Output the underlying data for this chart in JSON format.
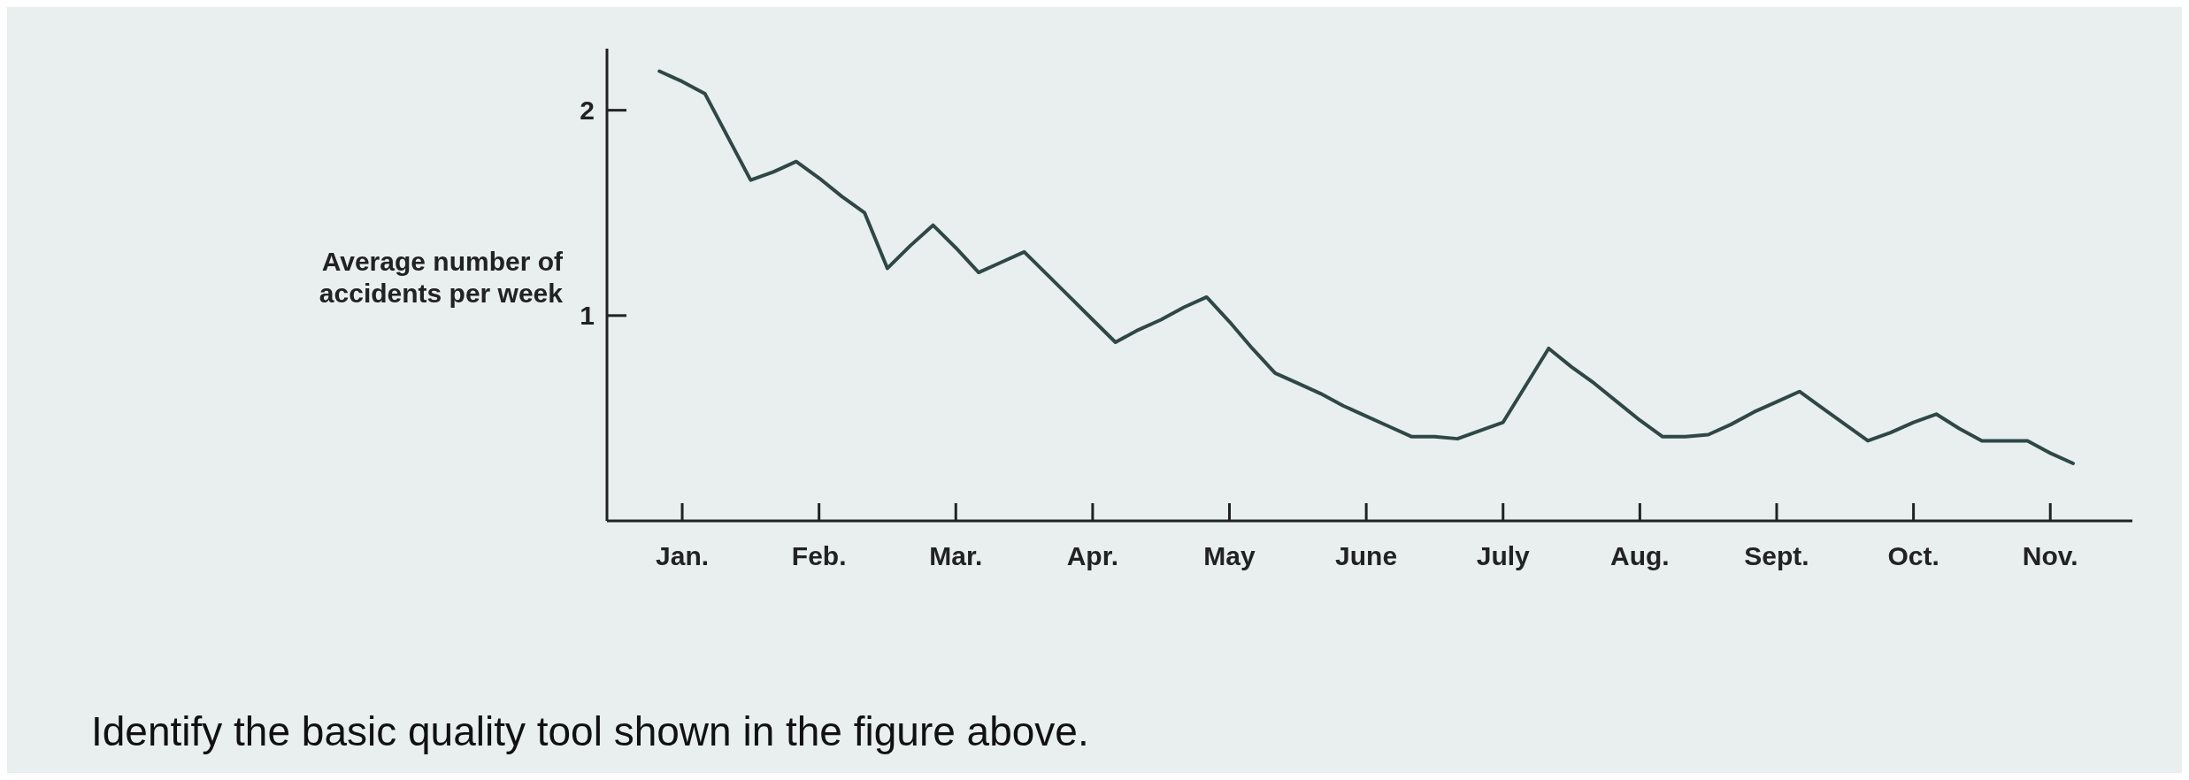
{
  "chart_data": {
    "type": "line",
    "ylabel": "Average number of accidents per week",
    "categories": [
      null,
      "Jan.",
      null,
      null,
      null,
      null,
      null,
      "Feb.",
      null,
      null,
      null,
      null,
      null,
      "Mar.",
      null,
      null,
      null,
      null,
      null,
      "Apr.",
      null,
      null,
      null,
      null,
      null,
      "May",
      null,
      null,
      null,
      null,
      null,
      "June",
      null,
      null,
      null,
      null,
      null,
      "July",
      null,
      null,
      null,
      null,
      null,
      "Aug.",
      null,
      null,
      null,
      null,
      null,
      "Sept.",
      null,
      null,
      null,
      null,
      null,
      "Oct.",
      null,
      null,
      null,
      null,
      null,
      "Nov.",
      null
    ],
    "series": [
      {
        "color": "#2f4747",
        "values": [
          2.19,
          2.14,
          2.08,
          1.87,
          1.66,
          1.7,
          1.75,
          1.67,
          1.58,
          1.5,
          1.23,
          1.34,
          1.44,
          1.33,
          1.21,
          1.26,
          1.31,
          1.2,
          1.09,
          0.98,
          0.87,
          0.93,
          0.98,
          1.04,
          1.09,
          0.97,
          0.84,
          0.72,
          0.67,
          0.62,
          0.56,
          0.51,
          0.46,
          0.41,
          0.41,
          0.4,
          0.44,
          0.48,
          0.66,
          0.84,
          0.75,
          0.67,
          0.58,
          0.49,
          0.41,
          0.41,
          0.42,
          0.47,
          0.53,
          0.58,
          0.63,
          0.55,
          0.47,
          0.39,
          0.43,
          0.48,
          0.52,
          0.45,
          0.39,
          0.39,
          0.39,
          0.33,
          0.28
        ]
      }
    ],
    "ylim": [
      0,
      2.3
    ],
    "yticks": [
      1,
      2
    ],
    "grid": false,
    "marker": "none",
    "line_style": "solid",
    "annotations": [
      "Identify the basic quality tool shown in the figure above."
    ]
  }
}
